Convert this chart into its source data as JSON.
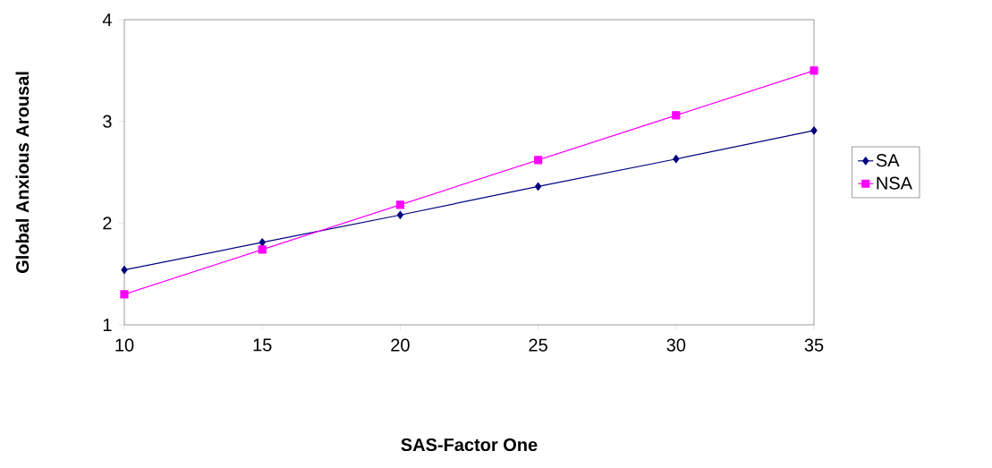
{
  "chart_data": {
    "type": "line",
    "xlabel": "SAS-Factor One",
    "ylabel": "Global  Anxious Arousal",
    "x": [
      10,
      15,
      20,
      25,
      30,
      35
    ],
    "series": [
      {
        "name": "SA",
        "color": "#000080",
        "marker": "diamond",
        "values": [
          1.54,
          1.81,
          2.08,
          2.36,
          2.63,
          2.91
        ]
      },
      {
        "name": "NSA",
        "color": "#ff00ff",
        "marker": "square",
        "values": [
          1.3,
          1.74,
          2.18,
          2.62,
          3.06,
          3.5
        ]
      }
    ],
    "xlim": [
      10,
      35
    ],
    "xticks": [
      10,
      15,
      20,
      25,
      30,
      35
    ],
    "ylim": [
      1,
      4
    ],
    "yticks": [
      1,
      2,
      3,
      4
    ],
    "grid": false,
    "legend": "right",
    "line_style": "solid"
  }
}
